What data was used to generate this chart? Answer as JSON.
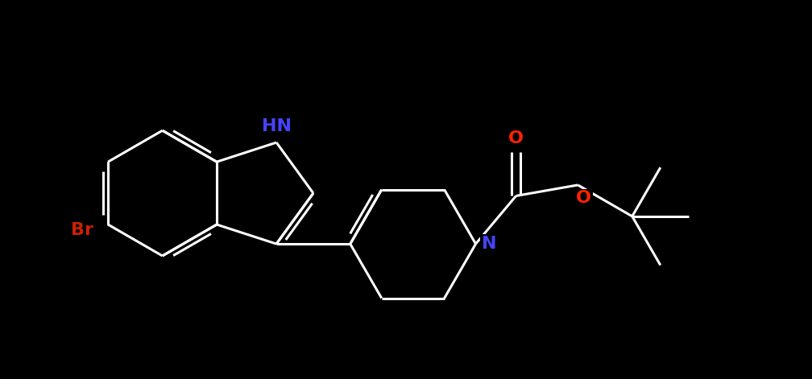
{
  "background_color": "#000000",
  "bond_color": "#ffffff",
  "HN_color": "#4444ff",
  "N_color": "#4444ff",
  "O_color": "#ff2200",
  "Br_color": "#cc2200",
  "line_width": 2.2,
  "figsize": [
    10.08,
    4.71
  ],
  "dpi": 100,
  "xlim": [
    -0.5,
    10.5
  ],
  "ylim": [
    0.0,
    5.0
  ]
}
